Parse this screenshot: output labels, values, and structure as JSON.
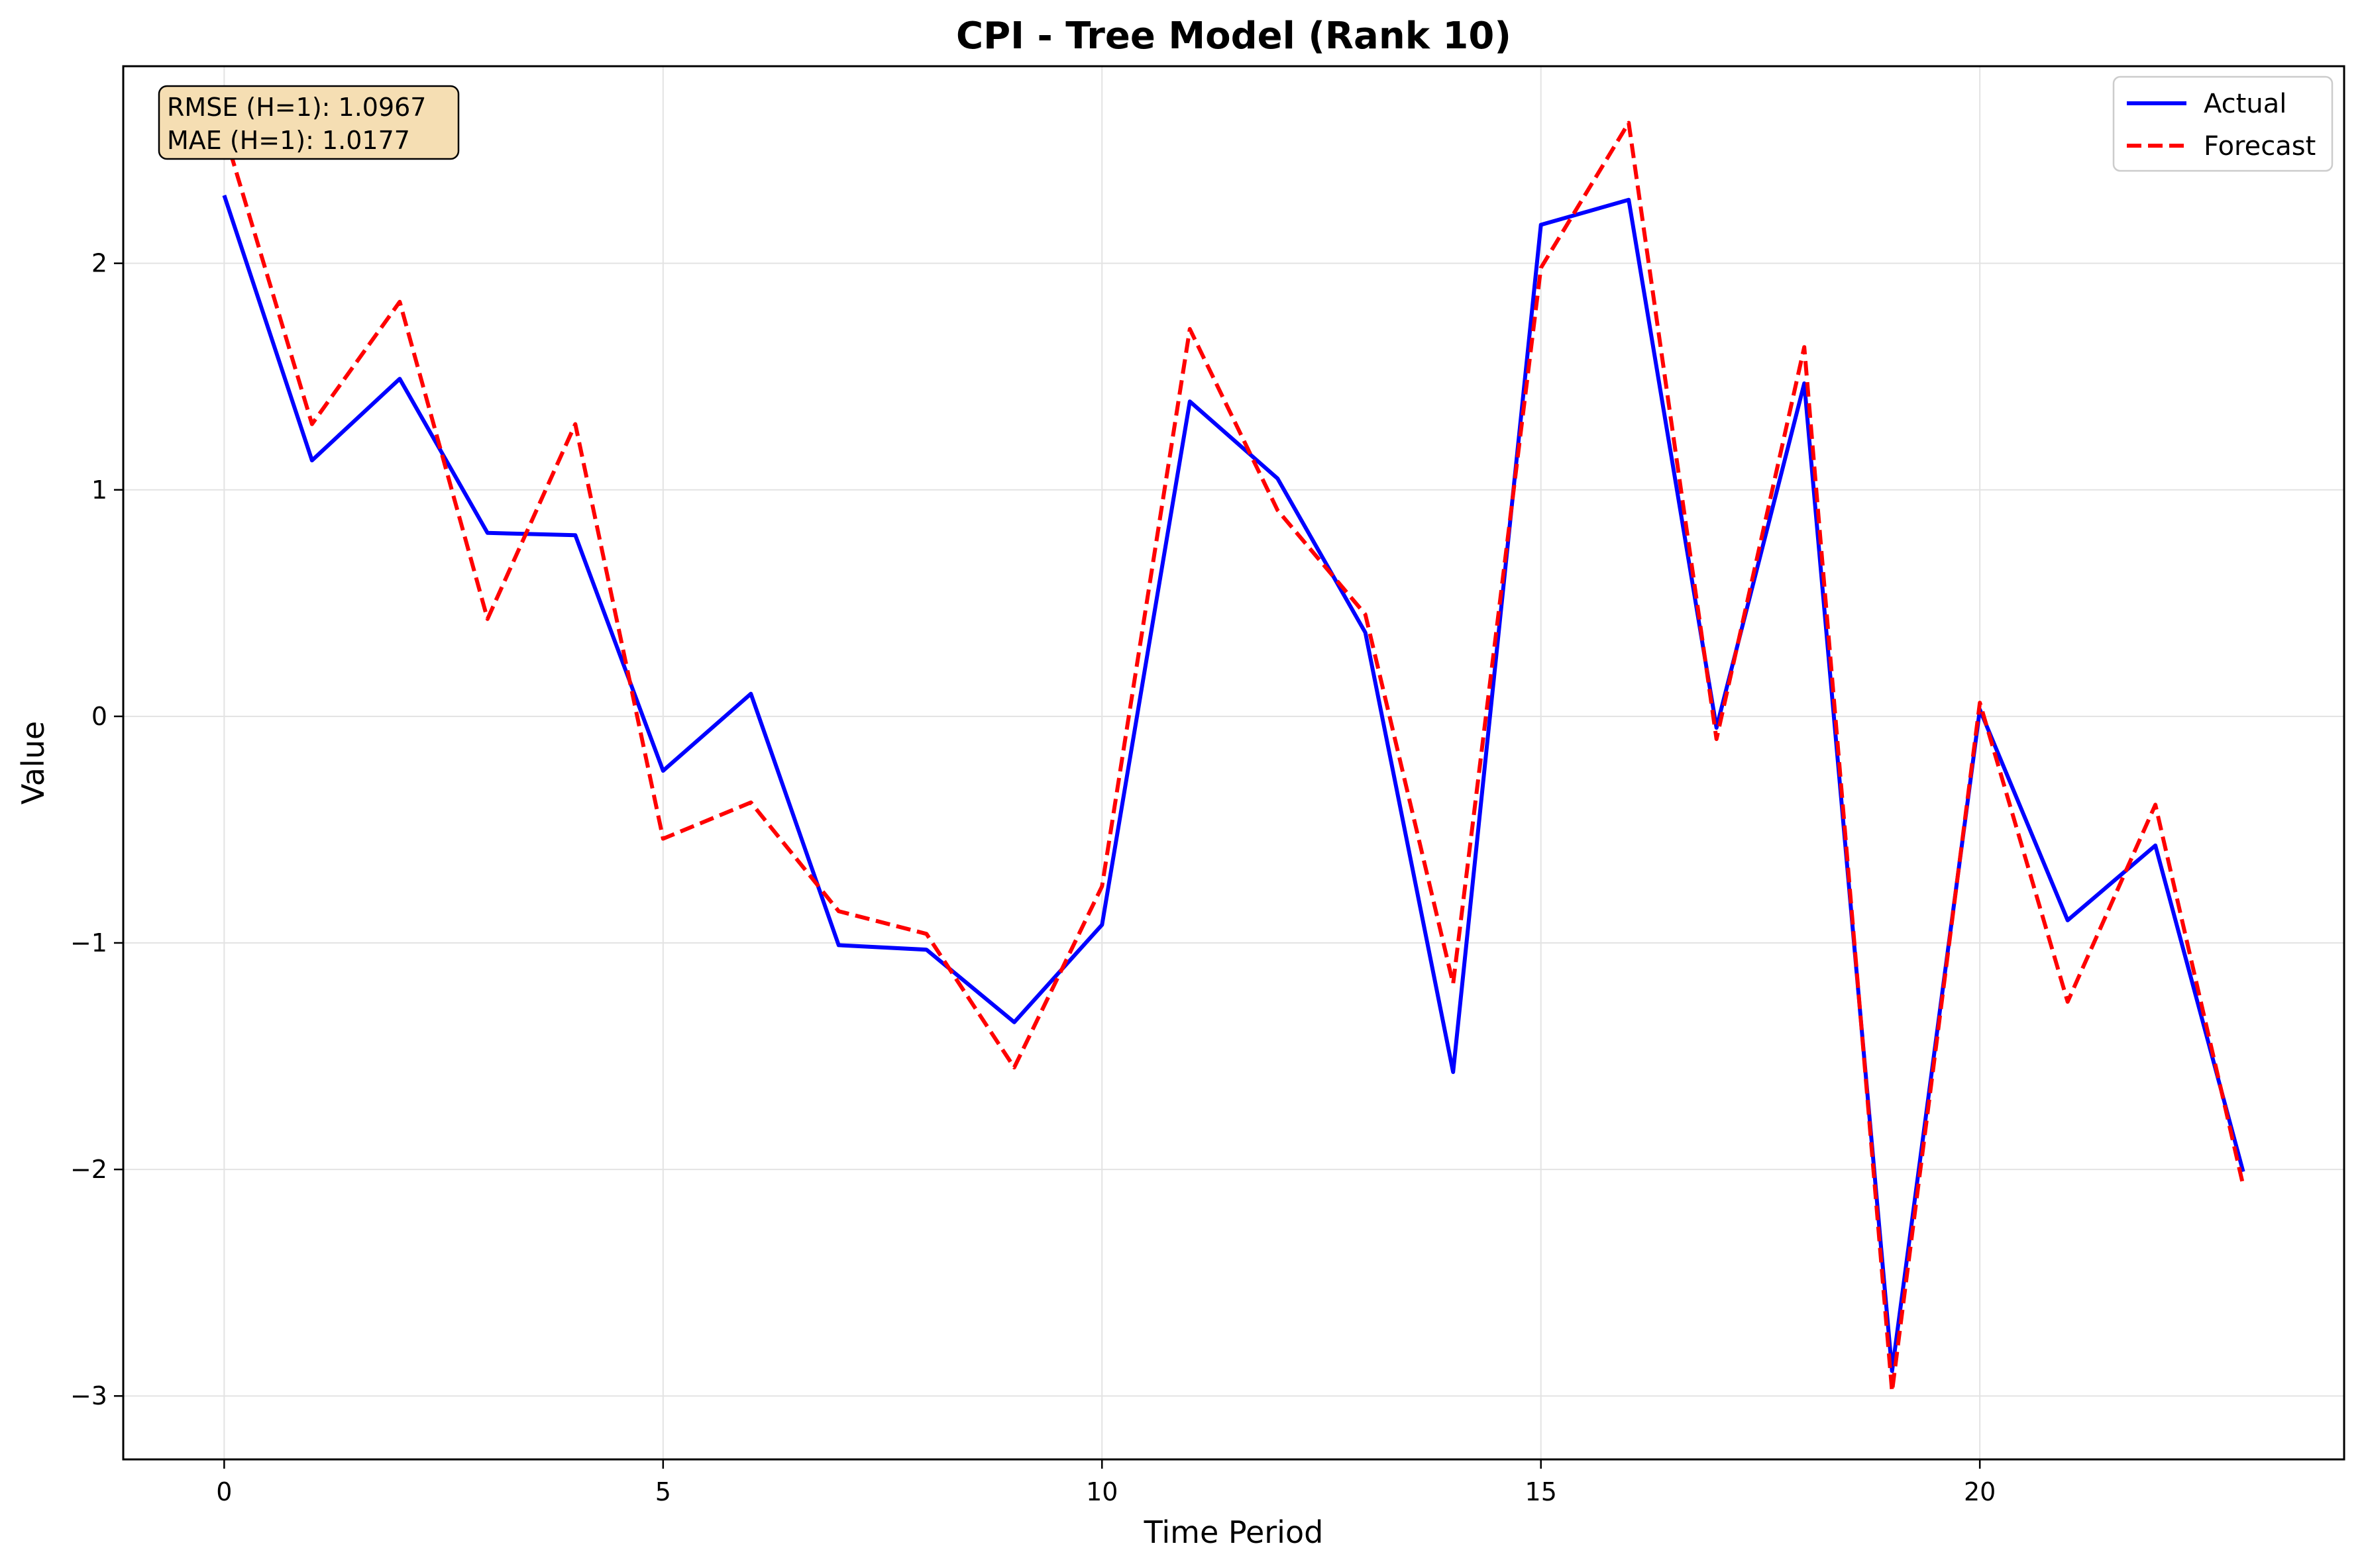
{
  "chart_data": {
    "type": "line",
    "title": "CPI - Tree Model (Rank 10)",
    "xlabel": "Time Period",
    "ylabel": "Value",
    "x": [
      0,
      1,
      2,
      3,
      4,
      5,
      6,
      7,
      8,
      9,
      10,
      11,
      12,
      13,
      14,
      15,
      16,
      17,
      18,
      19,
      20,
      21,
      22,
      23
    ],
    "xlim": [
      -1.15,
      24.15
    ],
    "ylim": [
      -3.28,
      2.87
    ],
    "xticks": [
      0,
      5,
      10,
      15,
      20
    ],
    "yticks": [
      -3,
      -2,
      -1,
      0,
      1,
      2
    ],
    "grid": true,
    "legend_position": "top-right",
    "series": [
      {
        "name": "Actual",
        "color": "#0000ff",
        "style": "solid",
        "values": [
          2.3,
          1.13,
          1.49,
          0.81,
          0.8,
          -0.24,
          0.1,
          -1.01,
          -1.03,
          -1.35,
          -0.92,
          1.39,
          1.05,
          0.37,
          -1.57,
          2.17,
          2.28,
          -0.05,
          1.47,
          -2.89,
          0.03,
          -0.9,
          -0.57,
          -2.01
        ]
      },
      {
        "name": "Forecast",
        "color": "#ff0000",
        "style": "dashed",
        "values": [
          2.58,
          1.29,
          1.83,
          0.43,
          1.29,
          -0.54,
          -0.38,
          -0.86,
          -0.96,
          -1.55,
          -0.75,
          1.71,
          0.91,
          0.45,
          -1.18,
          1.98,
          2.62,
          -0.1,
          1.63,
          -2.98,
          0.06,
          -1.26,
          -0.39,
          -2.07
        ]
      }
    ],
    "annotation": {
      "lines": [
        "RMSE (H=1): 1.0967",
        "MAE (H=1): 1.0177"
      ],
      "background": "#f5deb3"
    }
  }
}
